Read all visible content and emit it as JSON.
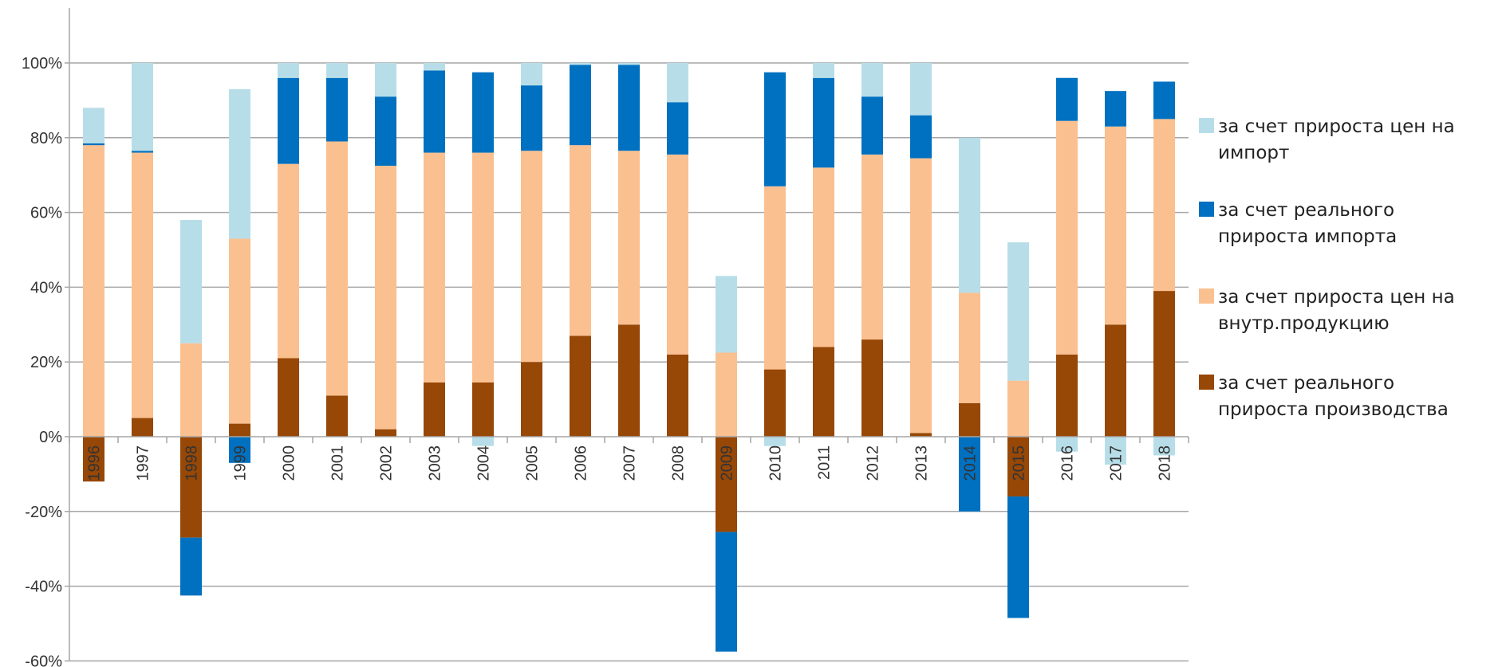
{
  "chart_data": {
    "type": "bar",
    "stacked": true,
    "title": "",
    "xlabel": "",
    "ylabel": "",
    "ylim": [
      -0.6,
      1.0
    ],
    "yticks": [
      -0.6,
      -0.4,
      -0.2,
      0,
      0.2,
      0.4,
      0.6,
      0.8,
      1.0
    ],
    "ytick_labels": [
      "-60%",
      "-40%",
      "-20%",
      "0%",
      "20%",
      "40%",
      "60%",
      "80%",
      "100%"
    ],
    "grid": true,
    "legend_position": "right",
    "categories": [
      "1996",
      "1997",
      "1998",
      "1999",
      "2000",
      "2001",
      "2002",
      "2003",
      "2004",
      "2005",
      "2006",
      "2007",
      "2008",
      "2009",
      "2010",
      "2011",
      "2012",
      "2013",
      "2014",
      "2015",
      "2016",
      "2017",
      "2018"
    ],
    "series": [
      {
        "name": "за счет реального прироста производства",
        "color": "#974706",
        "values": [
          -0.12,
          0.05,
          -0.27,
          0.035,
          0.21,
          0.11,
          0.02,
          0.145,
          0.145,
          0.2,
          0.27,
          0.3,
          0.22,
          -0.255,
          0.18,
          0.24,
          0.26,
          0.01,
          0.09,
          -0.16,
          0.22,
          0.3,
          0.39
        ]
      },
      {
        "name": "за счет прироста цен на внутр.продукцию",
        "color": "#FAC090",
        "values": [
          0.78,
          0.71,
          0.25,
          0.495,
          0.52,
          0.68,
          0.705,
          0.615,
          0.615,
          0.565,
          0.51,
          0.465,
          0.535,
          0.225,
          0.49,
          0.48,
          0.495,
          0.735,
          0.295,
          0.15,
          0.625,
          0.53,
          0.46
        ]
      },
      {
        "name": "за счет реального прироста импорта",
        "color": "#0070C0",
        "values": [
          0.005,
          0.005,
          -0.155,
          -0.07,
          0.23,
          0.17,
          0.185,
          0.22,
          0.215,
          0.175,
          0.215,
          0.23,
          0.14,
          -0.32,
          0.305,
          0.24,
          0.155,
          0.115,
          -0.2,
          -0.325,
          0.115,
          0.095,
          0.1
        ]
      },
      {
        "name": "за счет прироста цен на импорт",
        "color": "#B7DEE8",
        "values": [
          0.095,
          0.235,
          0.33,
          0.4,
          0.04,
          0.04,
          0.09,
          0.02,
          -0.025,
          0.06,
          0.005,
          0.005,
          0.105,
          0.205,
          -0.025,
          0.04,
          0.09,
          0.14,
          0.415,
          0.37,
          -0.04,
          -0.075,
          -0.05
        ]
      }
    ],
    "legend_order": [
      [
        "за счет прироста цен на",
        "импорт"
      ],
      [
        "за счет реального",
        "прироста импорта"
      ],
      [
        "за счет прироста цен на",
        "внутр.продукцию"
      ],
      [
        "за счет реального",
        "прироста производства"
      ]
    ]
  }
}
